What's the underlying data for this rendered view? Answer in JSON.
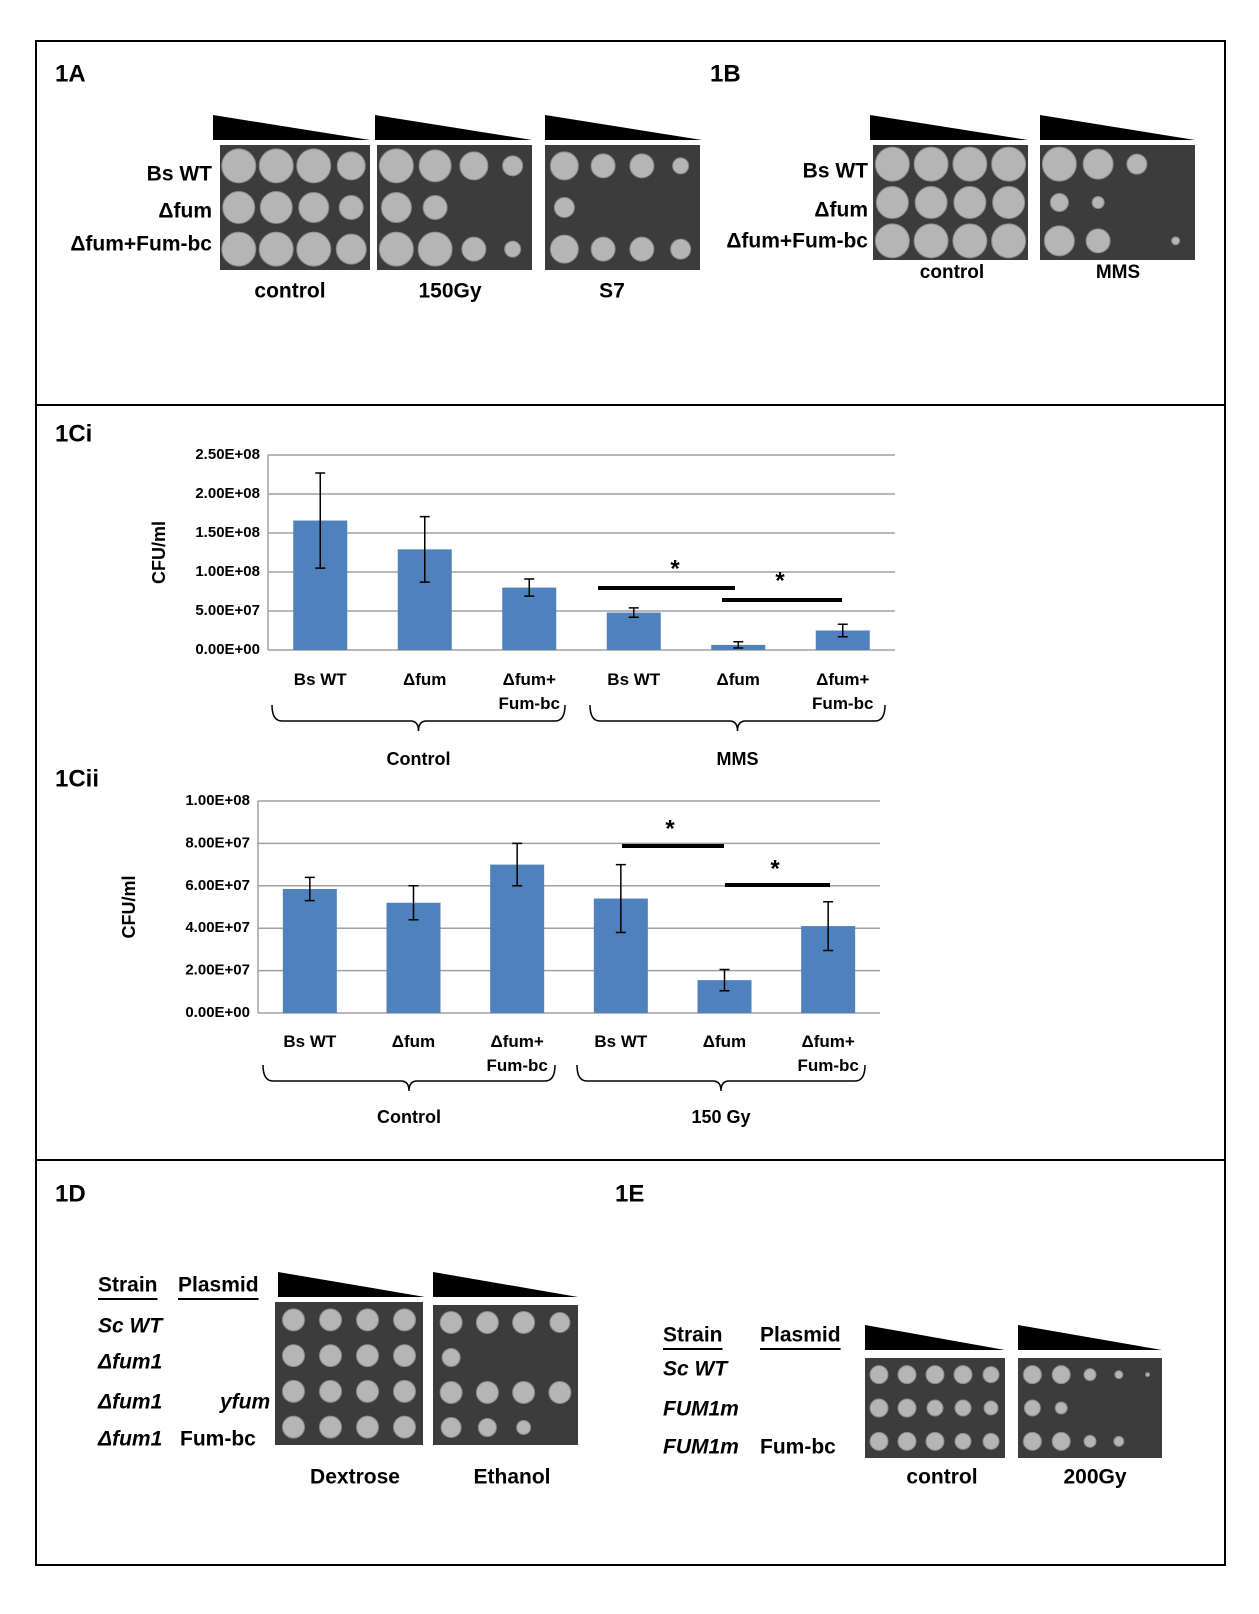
{
  "panel_1a": {
    "label": "1A",
    "rows": [
      "Bs WT",
      "Δfum",
      "Δfum+Fum-bc"
    ],
    "conditions": [
      "control",
      "150Gy",
      "S7"
    ]
  },
  "panel_1b": {
    "label": "1B",
    "rows": [
      "Bs WT",
      "Δfum",
      "Δfum+Fum-bc"
    ],
    "conditions": [
      "control",
      "MMS"
    ]
  },
  "chart_data": [
    {
      "type": "bar",
      "label": "1Ci",
      "ylabel": "CFU/ml",
      "categories": [
        "Bs WT",
        "Δfum",
        "Δfum+ Fum-bc",
        "Bs WT",
        "Δfum",
        "Δfum+ Fum-bc"
      ],
      "values": [
        166000000,
        129000000,
        80000000,
        48000000,
        6500000,
        25000000
      ],
      "errors": [
        61000000,
        42000000,
        11000000,
        6000000,
        4000000,
        8000000
      ],
      "color": "#4f81bd",
      "ylim": [
        0,
        250000000
      ],
      "yticks": [
        {
          "value": 0,
          "label": "0.00E+00"
        },
        {
          "value": 50000000,
          "label": "5.00E+07"
        },
        {
          "value": 100000000,
          "label": "1.00E+08"
        },
        {
          "value": 150000000,
          "label": "1.50E+08"
        },
        {
          "value": 200000000,
          "label": "2.00E+08"
        },
        {
          "value": 250000000,
          "label": "2.50E+08"
        }
      ],
      "grid": true,
      "groups": [
        "Control",
        "MMS"
      ],
      "annotations": [
        "*",
        "*"
      ]
    },
    {
      "type": "bar",
      "label": "1Cii",
      "ylabel": "CFU/ml",
      "categories": [
        "Bs WT",
        "Δfum",
        "Δfum+ Fum-bc",
        "Bs WT",
        "Δfum",
        "Δfum+ Fum-bc"
      ],
      "values": [
        58500000,
        52000000,
        70000000,
        54000000,
        15500000,
        41000000
      ],
      "errors": [
        5500000,
        8000000,
        10000000,
        16000000,
        5000000,
        11500000
      ],
      "color": "#4f81bd",
      "ylim": [
        0,
        100000000
      ],
      "yticks": [
        {
          "value": 0,
          "label": "0.00E+00"
        },
        {
          "value": 20000000,
          "label": "2.00E+07"
        },
        {
          "value": 40000000,
          "label": "4.00E+07"
        },
        {
          "value": 60000000,
          "label": "6.00E+07"
        },
        {
          "value": 80000000,
          "label": "8.00E+07"
        },
        {
          "value": 100000000,
          "label": "1.00E+08"
        }
      ],
      "grid": true,
      "groups": [
        "Control",
        "150 Gy"
      ],
      "annotations": [
        "*",
        "*"
      ]
    }
  ],
  "panel_1d": {
    "label": "1D",
    "headers": [
      "Strain",
      "Plasmid"
    ],
    "rows": [
      {
        "strain": "Sc WT"
      },
      {
        "strain": "Δfum1"
      },
      {
        "strain": "Δfum1",
        "plasmid": "yfum"
      },
      {
        "strain": "Δfum1",
        "plasmid": "Fum-bc"
      }
    ],
    "conditions": [
      "Dextrose",
      "Ethanol"
    ]
  },
  "panel_1e": {
    "label": "1E",
    "headers": [
      "Strain",
      "Plasmid"
    ],
    "rows": [
      {
        "strain": "Sc WT"
      },
      {
        "strain": "FUM1m"
      },
      {
        "strain": "FUM1m",
        "plasmid": "Fum-bc"
      }
    ],
    "conditions": [
      "control",
      "200Gy"
    ]
  }
}
